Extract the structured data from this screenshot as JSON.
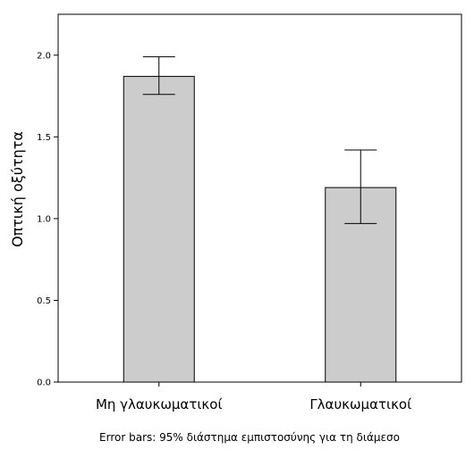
{
  "chart_data": {
    "type": "bar",
    "categories": [
      "Μη γλαυκωματικοί",
      "Γλαυκωματικοί"
    ],
    "values": [
      1.87,
      1.19
    ],
    "error_bars": {
      "lower": [
        1.76,
        0.97
      ],
      "upper": [
        1.99,
        1.42
      ]
    },
    "title": "",
    "xlabel": "",
    "ylabel": "Οπτική οξύτητα",
    "ylim": [
      0,
      2.25
    ],
    "yticks": [
      0.0,
      0.5,
      1.0,
      1.5,
      2.0
    ],
    "ytick_labels": [
      "0.0",
      "0.5",
      "1.0",
      "1.5",
      "2.0"
    ],
    "grid": false,
    "legend": "none",
    "footnote": "Error bars: 95% διάστημα εμπιστοσύνης για τη διάμεσο",
    "colors": {
      "bar_fill": "#cccccc",
      "bar_stroke": "#000000",
      "plot_background": "#ffffff",
      "axis": "#000000"
    }
  }
}
